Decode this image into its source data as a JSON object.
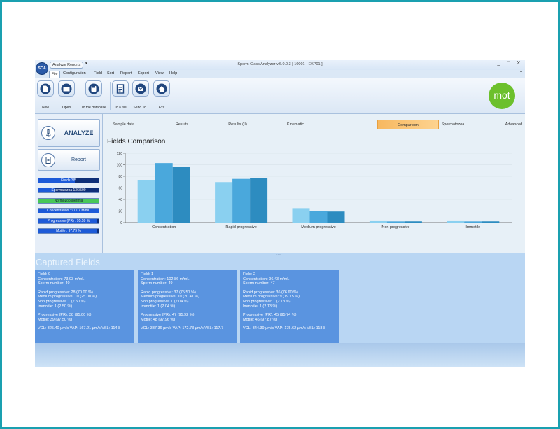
{
  "window": {
    "logo_text": "SCA",
    "quick_tab": "Analyze Reports",
    "quick_arrow": "▾",
    "title": "Sperm Class Analyzer v.6.0.0.3  [ 10001 - EXP01 ]",
    "controls": "_ □ X"
  },
  "menu": {
    "items": [
      "File",
      "Configuration",
      "Field",
      "Sort",
      "Report",
      "Export",
      "View",
      "Help"
    ],
    "collapse": "^"
  },
  "ribbon": {
    "buttons": [
      {
        "label": "New",
        "icon": "new-document-icon"
      },
      {
        "label": "Open",
        "icon": "folder-open-icon"
      },
      {
        "label": "To the database",
        "icon": "save-database-icon"
      },
      {
        "label": "To a file",
        "icon": "export-file-icon"
      },
      {
        "label": "Send To..",
        "icon": "send-mail-icon"
      },
      {
        "label": "Exit",
        "icon": "home-exit-icon"
      }
    ],
    "brand": "mot"
  },
  "left_panel": {
    "analyze_label": "ANALYZE",
    "report_label": "Report",
    "status": [
      {
        "text": "Fields 3/5",
        "fill": 0.6
      },
      {
        "text": "Spermatozoa 136/500",
        "fill": 0.27
      },
      {
        "text": "Normozoospermia",
        "fill": 1.0,
        "green": true
      },
      {
        "text": "Concentration : 91.07 M/mL",
        "fill": 1.0
      },
      {
        "text": "Progressive (PR) : 95.59 %",
        "fill": 0.956
      },
      {
        "text": "Motile : 97.79 %",
        "fill": 0.978
      }
    ]
  },
  "tabs": [
    "Sample data",
    "Results",
    "Results (II)",
    "Kinematic",
    "Comparison",
    "Spermatozoa",
    "Advanced"
  ],
  "active_tab": "Comparison",
  "content": {
    "title": "Fields Comparison"
  },
  "chart_data": {
    "type": "bar",
    "title": "",
    "categories": [
      "Concentration",
      "Rapid progressive",
      "Medium progressive",
      "Non progressive",
      "Immotile"
    ],
    "series": [
      {
        "values": [
          73.93,
          70.0,
          25.0,
          2.5,
          2.5
        ],
        "color": "#8ad0f0"
      },
      {
        "values": [
          102.86,
          75.51,
          20.41,
          2.04,
          2.04
        ],
        "color": "#4aa8dc"
      },
      {
        "values": [
          96.43,
          76.6,
          19.15,
          2.13,
          2.13
        ],
        "color": "#2d8cc0"
      }
    ],
    "ylim": [
      0,
      120
    ],
    "yticks": [
      "0",
      "20",
      "40",
      "60",
      "80",
      "100",
      "120"
    ],
    "grid": true
  },
  "captured": {
    "title": "Captured Fields",
    "fields": [
      {
        "lines_a": [
          "Field: 0",
          "Concentration: 73.93 m/mL",
          "Sperm number: 40"
        ],
        "lines_b": [
          "Rapid progressive: 28 (70.00 %)",
          "Medium progressive: 10 (25.00 %)",
          "Non progressive: 1 (2.50 %)",
          "Immotile: 1 (2.50 %)"
        ],
        "lines_c": [
          "Progressive (PR): 38 (95.00 %)",
          "Motile: 39 (97.50 %)"
        ],
        "lines_d": [
          "VCL: 325.40 µm/s  VAP: 167.21 µm/s  VSL: 114.8"
        ]
      },
      {
        "lines_a": [
          "Field: 1",
          "Concentration: 102.86 m/mL",
          "Sperm number: 49"
        ],
        "lines_b": [
          "Rapid progressive: 37 (75.51 %)",
          "Medium progressive: 10 (20.41 %)",
          "Non progressive: 1 (2.04 %)",
          "Immotile: 1 (2.04 %)"
        ],
        "lines_c": [
          "Progressive (PR): 47 (95.92 %)",
          "Motile: 48 (97.96 %)"
        ],
        "lines_d": [
          "VCL: 337.36 µm/s  VAP: 172.73 µm/s  VSL: 117.7"
        ]
      },
      {
        "lines_a": [
          "Field: 2",
          "Concentration: 96.43 m/mL",
          "Sperm number: 47"
        ],
        "lines_b": [
          "Rapid progressive: 36 (76.60 %)",
          "Medium progressive: 9 (19.15 %)",
          "Non progressive: 1 (2.13 %)",
          "Immotile: 1 (2.13 %)"
        ],
        "lines_c": [
          "Progressive (PR): 45 (95.74 %)",
          "Motile: 46 (97.87 %)"
        ],
        "lines_d": [
          "VCL: 344.39 µm/s  VAP: 175.62 µm/s  VSL: 118.8"
        ]
      }
    ]
  },
  "colors": {
    "accent": "#1aa0b0",
    "panel": "#c7dff5",
    "card": "#5a94e0",
    "active_tab": "#f7b860",
    "brand": "#6cc02c"
  }
}
